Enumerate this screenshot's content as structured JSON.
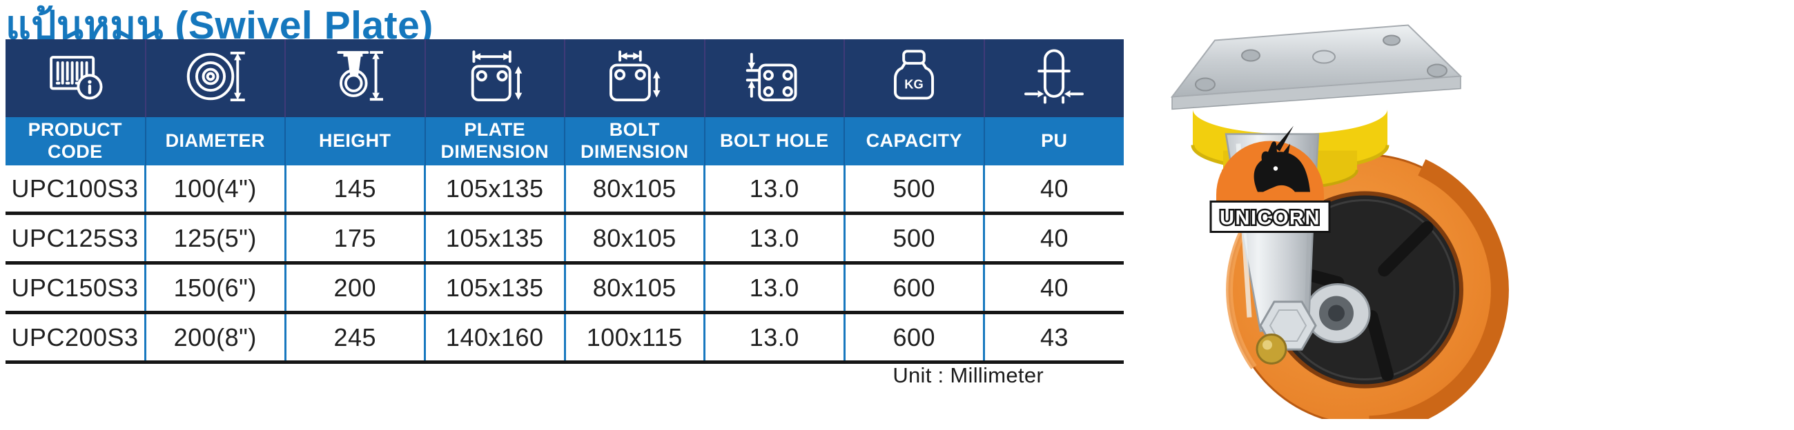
{
  "page": {
    "title": "แป้นหมุน (Swivel Plate)",
    "unit_note": "Unit : Millimeter"
  },
  "colors": {
    "title_blue": "#1577BD",
    "header_navy": "#1E3A6B",
    "header_blue": "#1878BF",
    "grid_blue": "#1878BF",
    "row_line_black": "#161616",
    "cell_text": "#202020",
    "wheel_orange": "#E8832A",
    "wheel_orange_dark": "#C4641A",
    "hub_black": "#242424",
    "cap_yellow": "#F2CF0E",
    "metal_silver": "#D8DDE1",
    "logo_orange": "#EF7D26"
  },
  "table": {
    "columns": [
      {
        "label": "PRODUCT CODE",
        "icon": "barcode-info-icon"
      },
      {
        "label": "DIAMETER",
        "icon": "wheel-diameter-icon"
      },
      {
        "label": "HEIGHT",
        "icon": "caster-height-icon"
      },
      {
        "label": "PLATE DIMENSION",
        "icon": "plate-dimension-icon"
      },
      {
        "label": "BOLT DIMENSION",
        "icon": "bolt-dimension-icon"
      },
      {
        "label": "BOLT HOLE",
        "icon": "bolt-hole-icon"
      },
      {
        "label": "CAPACITY",
        "icon": "capacity-kg-icon"
      },
      {
        "label": "PU",
        "icon": "wheel-width-icon"
      }
    ],
    "rows": [
      [
        "UPC100S3",
        "100(4\")",
        "145",
        "105x135",
        "80x105",
        "13.0",
        "500",
        "40"
      ],
      [
        "UPC125S3",
        "125(5\")",
        "175",
        "105x135",
        "80x105",
        "13.0",
        "500",
        "40"
      ],
      [
        "UPC150S3",
        "150(6\")",
        "200",
        "105x135",
        "80x105",
        "13.0",
        "600",
        "40"
      ],
      [
        "UPC200S3",
        "200(8\")",
        "245",
        "140x160",
        "100x115",
        "13.0",
        "600",
        "43"
      ]
    ]
  },
  "product_image": {
    "brand": "UNICORN",
    "description": "Swivel plate caster with orange polyurethane wheel"
  }
}
